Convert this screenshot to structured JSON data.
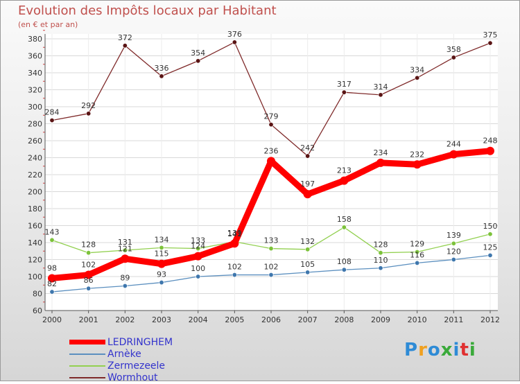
{
  "header": {
    "title": "Evolution des Impôts locaux par Habitant",
    "subtitle": "(en € et par an)"
  },
  "logo": {
    "text": "Proxiti",
    "colors": [
      "#2e8bd6",
      "#f0a020",
      "#2e8bd6",
      "#3aaa3a",
      "#2e8bd6",
      "#e03030",
      "#3aaa3a"
    ]
  },
  "chart_data": {
    "type": "line",
    "title": "Evolution des Impôts locaux par Habitant",
    "subtitle": "(en € et par an)",
    "xlabel": "",
    "ylabel": "",
    "ylim": [
      60,
      380
    ],
    "ytick_step": 20,
    "grid": "horizontal",
    "legend": "bottom-left",
    "x": [
      "2000",
      "2001",
      "2002",
      "2003",
      "2004",
      "2005",
      "2006",
      "2007",
      "2008",
      "2009",
      "2010",
      "2011",
      "2012"
    ],
    "series": [
      {
        "name": "Wormhout",
        "color": "#7f2a2a",
        "marker": "#5a1414",
        "values": [
          284,
          292,
          372,
          336,
          354,
          376,
          279,
          242,
          317,
          314,
          334,
          358,
          375
        ]
      },
      {
        "name": "Zermezeele",
        "color": "#92d050",
        "marker": "#7cc23a",
        "values": [
          143,
          128,
          131,
          134,
          133,
          141,
          133,
          132,
          158,
          128,
          129,
          139,
          150
        ]
      },
      {
        "name": "Arnèke",
        "color": "#5b8fbf",
        "marker": "#3f77ad",
        "values": [
          82,
          86,
          89,
          93,
          100,
          102,
          102,
          105,
          108,
          110,
          116,
          120,
          125
        ]
      },
      {
        "name": "LEDRINGHEM",
        "color": "#ff0000",
        "marker": "#ff0000",
        "values": [
          98,
          102,
          121,
          115,
          124,
          139,
          236,
          197,
          213,
          234,
          232,
          244,
          248
        ]
      }
    ],
    "legend_order": [
      "LEDRINGHEM",
      "Arnèke",
      "Zermezeele",
      "Wormhout"
    ]
  }
}
